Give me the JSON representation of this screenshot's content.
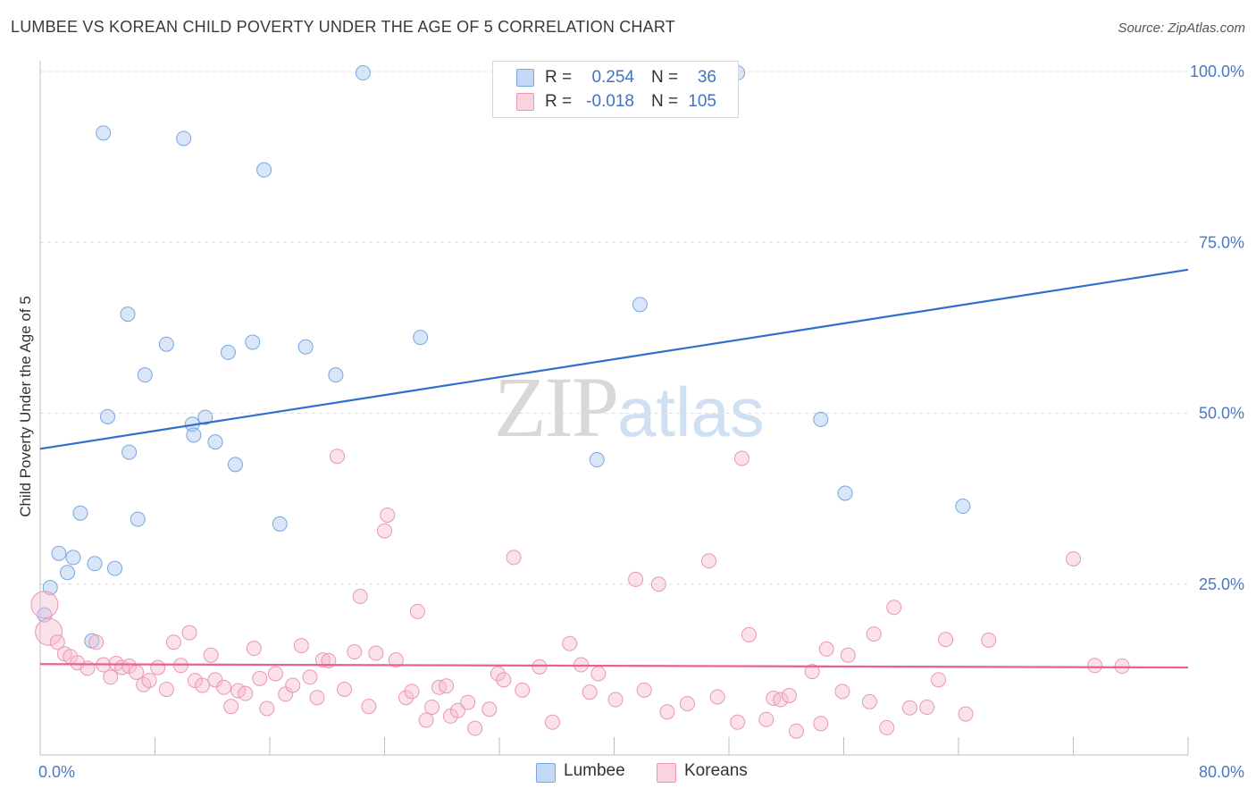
{
  "header": {
    "title": "LUMBEE VS KOREAN CHILD POVERTY UNDER THE AGE OF 5 CORRELATION CHART",
    "source": "Source: ZipAtlas.com"
  },
  "watermark": {
    "zip": "ZIP",
    "atlas": "atlas"
  },
  "legend": {
    "rows": [
      {
        "r_label": "R =",
        "r_value": "0.254",
        "n_label": "N =",
        "n_value": "36",
        "color": "#a9c8f0"
      },
      {
        "r_label": "R =",
        "r_value": "-0.018",
        "n_label": "N =",
        "n_value": "105",
        "color": "#f7bcd0"
      }
    ]
  },
  "bottom_legend": {
    "items": [
      {
        "label": "Lumbee",
        "color": "#a9c8f0"
      },
      {
        "label": "Koreans",
        "color": "#f7bcd0"
      }
    ]
  },
  "chart_data": {
    "type": "scatter",
    "ylabel": "Child Poverty Under the Age of 5",
    "xlim": [
      0,
      80
    ],
    "ylim": [
      0,
      100
    ],
    "x_tick_labels": [
      {
        "value": 0,
        "label": "0.0%"
      },
      {
        "value": 80,
        "label": "80.0%"
      }
    ],
    "y_tick_labels": [
      {
        "value": 25,
        "label": "25.0%"
      },
      {
        "value": 50,
        "label": "50.0%"
      },
      {
        "value": 75,
        "label": "75.0%"
      },
      {
        "value": 100,
        "label": "100.0%"
      }
    ],
    "x_minor_ticks": [
      0,
      8,
      16,
      24,
      32,
      40,
      48,
      56,
      64,
      72,
      80
    ],
    "grid": "dashed-horizontal",
    "series": [
      {
        "name": "Lumbee",
        "color": "#a9c8f0",
        "stroke": "#7aa6dd",
        "trend": {
          "x": [
            0,
            80
          ],
          "y": [
            44.8,
            71.0
          ],
          "color": "#2f6fcf"
        },
        "points": [
          [
            0.7,
            24.5
          ],
          [
            0.3,
            20.5
          ],
          [
            1.3,
            29.5
          ],
          [
            1.9,
            26.7
          ],
          [
            2.3,
            28.9
          ],
          [
            2.8,
            35.4
          ],
          [
            3.6,
            16.7
          ],
          [
            3.8,
            28.0
          ],
          [
            4.4,
            91.0
          ],
          [
            4.7,
            49.5
          ],
          [
            5.2,
            27.3
          ],
          [
            6.1,
            64.5
          ],
          [
            6.2,
            44.3
          ],
          [
            6.8,
            34.5
          ],
          [
            7.3,
            55.6
          ],
          [
            8.8,
            60.1
          ],
          [
            10.0,
            90.2
          ],
          [
            10.6,
            48.4
          ],
          [
            10.7,
            46.8
          ],
          [
            11.5,
            49.4
          ],
          [
            12.2,
            45.8
          ],
          [
            13.1,
            58.9
          ],
          [
            13.6,
            42.5
          ],
          [
            14.8,
            60.4
          ],
          [
            15.6,
            85.6
          ],
          [
            16.7,
            33.8
          ],
          [
            18.5,
            59.7
          ],
          [
            20.6,
            55.6
          ],
          [
            22.5,
            99.8
          ],
          [
            26.5,
            61.1
          ],
          [
            38.8,
            43.2
          ],
          [
            41.8,
            65.9
          ],
          [
            54.4,
            49.1
          ],
          [
            48.6,
            99.8
          ],
          [
            56.1,
            38.3
          ],
          [
            64.3,
            36.4
          ]
        ]
      },
      {
        "name": "Koreans",
        "color": "#f7bcd0",
        "stroke": "#ea97b3",
        "trend": {
          "x": [
            0,
            80
          ],
          "y": [
            13.3,
            12.8
          ],
          "color": "#e8628c"
        },
        "points": [
          [
            0.3,
            22.0
          ],
          [
            0.6,
            18.0
          ],
          [
            1.2,
            16.5
          ],
          [
            1.7,
            14.8
          ],
          [
            2.1,
            14.4
          ],
          [
            2.6,
            13.5
          ],
          [
            3.3,
            12.7
          ],
          [
            3.9,
            16.5
          ],
          [
            4.4,
            13.2
          ],
          [
            4.9,
            11.4
          ],
          [
            5.3,
            13.4
          ],
          [
            5.7,
            12.8
          ],
          [
            6.2,
            13.0
          ],
          [
            6.7,
            12.1
          ],
          [
            7.2,
            10.3
          ],
          [
            7.6,
            10.9
          ],
          [
            8.2,
            12.8
          ],
          [
            8.8,
            9.6
          ],
          [
            9.3,
            16.5
          ],
          [
            9.8,
            13.1
          ],
          [
            10.4,
            17.9
          ],
          [
            10.8,
            10.9
          ],
          [
            11.3,
            10.2
          ],
          [
            11.9,
            14.6
          ],
          [
            12.2,
            11.0
          ],
          [
            12.8,
            9.9
          ],
          [
            13.3,
            7.1
          ],
          [
            13.8,
            9.4
          ],
          [
            14.3,
            9.0
          ],
          [
            14.9,
            15.6
          ],
          [
            15.3,
            11.2
          ],
          [
            15.8,
            6.8
          ],
          [
            16.4,
            11.9
          ],
          [
            17.1,
            8.9
          ],
          [
            17.6,
            10.2
          ],
          [
            18.2,
            16.0
          ],
          [
            18.8,
            11.4
          ],
          [
            19.3,
            8.4
          ],
          [
            19.7,
            13.9
          ],
          [
            20.1,
            13.8
          ],
          [
            20.7,
            43.7
          ],
          [
            21.2,
            9.6
          ],
          [
            21.9,
            15.1
          ],
          [
            22.3,
            23.2
          ],
          [
            22.9,
            7.1
          ],
          [
            23.4,
            14.9
          ],
          [
            24.0,
            32.8
          ],
          [
            24.2,
            35.1
          ],
          [
            24.8,
            13.9
          ],
          [
            25.5,
            8.4
          ],
          [
            25.9,
            9.3
          ],
          [
            26.3,
            21.0
          ],
          [
            26.9,
            5.1
          ],
          [
            27.3,
            7.0
          ],
          [
            27.8,
            9.9
          ],
          [
            28.3,
            10.1
          ],
          [
            28.6,
            5.7
          ],
          [
            29.1,
            6.5
          ],
          [
            29.8,
            7.7
          ],
          [
            30.3,
            3.9
          ],
          [
            31.3,
            6.7
          ],
          [
            31.9,
            11.9
          ],
          [
            32.3,
            11.0
          ],
          [
            33.0,
            28.9
          ],
          [
            33.6,
            9.5
          ],
          [
            34.8,
            12.9
          ],
          [
            35.7,
            4.8
          ],
          [
            36.9,
            16.3
          ],
          [
            37.7,
            13.2
          ],
          [
            38.3,
            9.2
          ],
          [
            38.9,
            11.9
          ],
          [
            40.1,
            8.1
          ],
          [
            41.5,
            25.7
          ],
          [
            42.1,
            9.5
          ],
          [
            43.1,
            25.0
          ],
          [
            43.7,
            6.3
          ],
          [
            45.1,
            7.5
          ],
          [
            46.6,
            28.4
          ],
          [
            47.2,
            8.5
          ],
          [
            48.6,
            4.8
          ],
          [
            48.9,
            43.4
          ],
          [
            49.4,
            17.6
          ],
          [
            50.6,
            5.2
          ],
          [
            51.1,
            8.3
          ],
          [
            51.6,
            8.1
          ],
          [
            52.2,
            8.7
          ],
          [
            52.7,
            3.5
          ],
          [
            53.8,
            12.2
          ],
          [
            54.4,
            4.6
          ],
          [
            54.8,
            15.5
          ],
          [
            55.9,
            9.3
          ],
          [
            56.3,
            14.6
          ],
          [
            57.8,
            7.8
          ],
          [
            58.1,
            17.7
          ],
          [
            59.0,
            4.0
          ],
          [
            59.5,
            21.6
          ],
          [
            60.6,
            6.9
          ],
          [
            61.8,
            7.0
          ],
          [
            62.6,
            11.0
          ],
          [
            63.1,
            16.9
          ],
          [
            66.1,
            16.8
          ],
          [
            72.0,
            28.7
          ],
          [
            73.5,
            13.1
          ],
          [
            75.4,
            13.0
          ],
          [
            64.5,
            6.0
          ]
        ]
      }
    ]
  }
}
